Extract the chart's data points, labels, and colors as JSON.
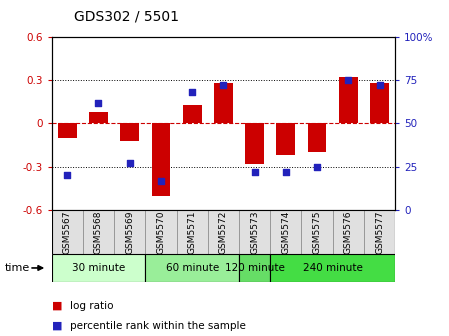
{
  "title": "GDS302 / 5501",
  "samples": [
    "GSM5567",
    "GSM5568",
    "GSM5569",
    "GSM5570",
    "GSM5571",
    "GSM5572",
    "GSM5573",
    "GSM5574",
    "GSM5575",
    "GSM5576",
    "GSM5577"
  ],
  "log_ratio": [
    -0.1,
    0.08,
    -0.12,
    -0.5,
    0.13,
    0.28,
    -0.28,
    -0.22,
    -0.2,
    0.32,
    0.28
  ],
  "percentile": [
    20,
    62,
    27,
    17,
    68,
    72,
    22,
    22,
    25,
    75,
    72
  ],
  "groups": [
    {
      "label": "30 minute",
      "start": 0,
      "end": 3,
      "color": "#ccffcc"
    },
    {
      "label": "60 minute",
      "start": 3,
      "end": 6,
      "color": "#99ee99"
    },
    {
      "label": "120 minute",
      "start": 6,
      "end": 7,
      "color": "#66dd66"
    },
    {
      "label": "240 minute",
      "start": 7,
      "end": 11,
      "color": "#44dd44"
    }
  ],
  "ylim_left": [
    -0.6,
    0.6
  ],
  "ylim_right": [
    0,
    100
  ],
  "bar_color": "#cc0000",
  "dot_color": "#2222bb",
  "zero_line_color": "#cc0000",
  "grid_color": "black",
  "sample_bg": "#e0e0e0",
  "legend_bar": "log ratio",
  "legend_dot": "percentile rank within the sample",
  "xlabel": "time"
}
